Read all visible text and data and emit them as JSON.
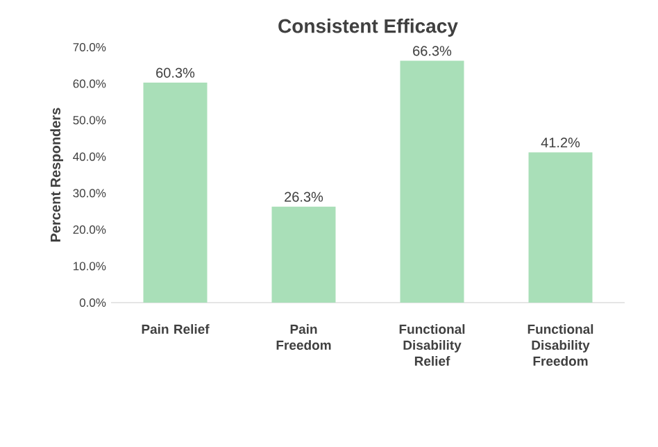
{
  "chart_data": {
    "type": "bar",
    "title": "Consistent Efficacy",
    "ylabel": "Percent  Responders",
    "categories": [
      "Pain Relief",
      "Pain Freedom",
      "Functional Disability Relief",
      "Functional Disability Freedom"
    ],
    "values": [
      60.3,
      26.3,
      66.3,
      41.2
    ],
    "value_labels": [
      "60.3%",
      "26.3%",
      "66.3%",
      "41.2%"
    ],
    "color": "#a9dfb8",
    "ylim": [
      0,
      70
    ],
    "yticks": [
      {
        "value": 0,
        "label": "0.0%"
      },
      {
        "value": 10,
        "label": "10.0%"
      },
      {
        "value": 20,
        "label": "20.0%"
      },
      {
        "value": 30,
        "label": "30.0%"
      },
      {
        "value": 40,
        "label": "40.0%"
      },
      {
        "value": 50,
        "label": "50.0%"
      },
      {
        "value": 60,
        "label": "60.0%"
      },
      {
        "value": 70,
        "label": "70.0%"
      }
    ],
    "grid": false
  }
}
